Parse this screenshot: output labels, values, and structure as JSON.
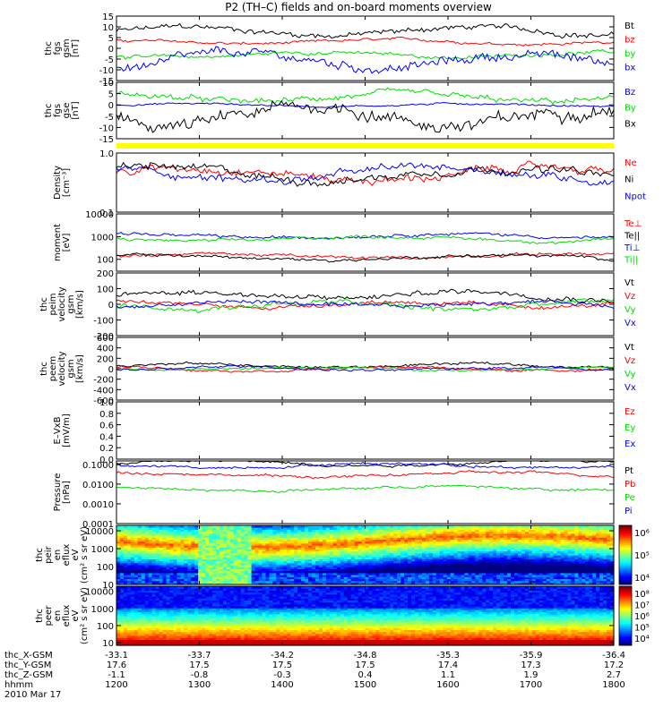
{
  "chart_data": {
    "title": "P2 (TH–C) fields and on-board moments overview",
    "type": "line",
    "x": {
      "label": "hhmm",
      "range": [
        1200,
        1800
      ],
      "ticks": [
        "1200",
        "1300",
        "1400",
        "1500",
        "1600",
        "1700",
        "1800"
      ]
    },
    "date": "2010 Mar 17",
    "ephemeris": [
      {
        "name": "thc_X-GSM",
        "values": [
          "-33.1",
          "-33.7",
          "-34.2",
          "-34.8",
          "-35.3",
          "-35.9",
          "-36.4"
        ]
      },
      {
        "name": "thc_Y-GSM",
        "values": [
          "17.6",
          "17.5",
          "17.5",
          "17.5",
          "17.4",
          "17.3",
          "17.2"
        ]
      },
      {
        "name": "thc_Z-GSM",
        "values": [
          "-1.1",
          "-0.8",
          "-0.3",
          "0.4",
          "1.1",
          "1.9",
          "2.7"
        ]
      },
      {
        "name": "hhmm",
        "values": [
          "1200",
          "1300",
          "1400",
          "1500",
          "1600",
          "1700",
          "1800"
        ]
      }
    ],
    "panels": [
      {
        "id": "fgs",
        "ylabel": [
          "thc",
          "fgs",
          "gsm",
          "[nT]"
        ],
        "scale": "linear",
        "ylim": [
          -15,
          15
        ],
        "yticks": [
          "15",
          "10",
          "5",
          "0",
          "-5",
          "-10",
          "-15"
        ],
        "series": [
          {
            "name": "Bt",
            "color": "#000000",
            "level": 8,
            "amp": 3
          },
          {
            "name": "bz",
            "color": "#ff0000",
            "level": 3,
            "amp": 1.5
          },
          {
            "name": "by",
            "color": "#00dd00",
            "level": -3,
            "amp": 2
          },
          {
            "name": "bx",
            "color": "#0000ff",
            "level": -6,
            "amp": 5
          }
        ]
      },
      {
        "id": "fgs-despun",
        "ylabel": [
          "thc",
          "fgs",
          "gse",
          "[nT]"
        ],
        "scale": "linear",
        "ylim": [
          -15,
          10
        ],
        "yticks": [
          "10",
          "5",
          "0",
          "-5",
          "-10",
          "-15"
        ],
        "series": [
          {
            "name": "Bz",
            "color": "#0000ff",
            "level": 0,
            "amp": 1
          },
          {
            "name": "By",
            "color": "#00dd00",
            "level": 3,
            "amp": 3
          },
          {
            "name": "Bx",
            "color": "#000000",
            "level": -5,
            "amp": 7
          }
        ]
      },
      {
        "id": "flag-bar",
        "bar_color": "#ffff00"
      },
      {
        "id": "density",
        "ylabel": [
          "Density",
          "[cm⁻³]"
        ],
        "scale": "log",
        "ylim": [
          0.1,
          1.0
        ],
        "yticks": [
          "1.0",
          "0.1"
        ],
        "series": [
          {
            "name": "Ne",
            "color": "#ff0000",
            "level": 0.45,
            "amp": 0.1
          },
          {
            "name": "Ni",
            "color": "#000000",
            "level": 0.45,
            "amp": 0.1
          },
          {
            "name": "Npot",
            "color": "#0000ff",
            "level": 0.45,
            "amp": 0.08
          }
        ]
      },
      {
        "id": "temperature",
        "ylabel": [
          "moment",
          "[eV]"
        ],
        "scale": "log",
        "ylim": [
          30,
          10000
        ],
        "yticks": [
          "10000",
          "1000",
          "100"
        ],
        "series": [
          {
            "name": "Te⊥",
            "color": "#ff0000",
            "level": 140,
            "amp": 20
          },
          {
            "name": "Te||",
            "color": "#000000",
            "level": 120,
            "amp": 20
          },
          {
            "name": "Ti⊥",
            "color": "#0000ff",
            "level": 1100,
            "amp": 200
          },
          {
            "name": "Ti||",
            "color": "#00dd00",
            "level": 800,
            "amp": 150
          }
        ]
      },
      {
        "id": "velocity-peim",
        "ylabel": [
          "thc",
          "peim",
          "velocity",
          "gsm",
          "[km/s]"
        ],
        "scale": "linear",
        "ylim": [
          -200,
          200
        ],
        "yticks": [
          "200",
          "100",
          "0",
          "-100",
          "-200"
        ],
        "series": [
          {
            "name": "Vt",
            "color": "#000000",
            "level": 60,
            "amp": 40
          },
          {
            "name": "Vz",
            "color": "#ff0000",
            "level": 0,
            "amp": 30
          },
          {
            "name": "Vy",
            "color": "#00dd00",
            "level": -10,
            "amp": 40
          },
          {
            "name": "Vx",
            "color": "#0000ff",
            "level": 0,
            "amp": 30
          }
        ]
      },
      {
        "id": "velocity-peem",
        "ylabel": [
          "thc",
          "peem",
          "velocity",
          "gsm",
          "[km/s]"
        ],
        "scale": "linear",
        "ylim": [
          -600,
          600
        ],
        "yticks": [
          "600",
          "400",
          "200",
          "0",
          "-200",
          "-400",
          "-600"
        ],
        "series": [
          {
            "name": "Vt",
            "color": "#000000",
            "level": 60,
            "amp": 60
          },
          {
            "name": "Vz",
            "color": "#ff0000",
            "level": 0,
            "amp": 50
          },
          {
            "name": "Vy",
            "color": "#00dd00",
            "level": 0,
            "amp": 40
          },
          {
            "name": "Vx",
            "color": "#0000ff",
            "level": 0,
            "amp": 60
          }
        ]
      },
      {
        "id": "efield",
        "ylabel": [
          "E–VxB",
          "[mV/m]"
        ],
        "scale": "linear",
        "ylim": [
          0,
          1
        ],
        "yticks": [
          "1.0",
          "0.8",
          "0.6",
          "0.4",
          "0.2",
          "0.0"
        ],
        "series": [
          {
            "name": "Ez",
            "color": "#ff0000"
          },
          {
            "name": "Ey",
            "color": "#00dd00"
          },
          {
            "name": "Ex",
            "color": "#0000ff"
          }
        ],
        "empty": true
      },
      {
        "id": "pressure",
        "ylabel": [
          "Pressure",
          "[nPa]"
        ],
        "scale": "log",
        "ylim": [
          0.0001,
          0.15
        ],
        "yticks": [
          "0.1000",
          "0.0100",
          "0.0010",
          "0.0001"
        ],
        "series": [
          {
            "name": "Pt",
            "color": "#000000",
            "level": 0.12,
            "amp": 0.01
          },
          {
            "name": "Pb",
            "color": "#ff0000",
            "level": 0.03,
            "amp": 0.015
          },
          {
            "name": "Pe",
            "color": "#00dd00",
            "level": 0.006,
            "amp": 0.002
          },
          {
            "name": "Pi",
            "color": "#0000ff",
            "level": 0.09,
            "amp": 0.01
          }
        ]
      },
      {
        "id": "ion-spectrogram",
        "type": "heatmap",
        "ylabel": [
          "thc",
          "peir",
          "en",
          "eflux",
          "eV",
          "(cm² s sr eV)"
        ],
        "scale": "log",
        "ylim": [
          10,
          20000
        ],
        "yticks": [
          "10000",
          "1000",
          "100",
          "10"
        ],
        "colorbar": {
          "ticks": [
            "10⁶",
            "10⁵",
            "10⁴"
          ],
          "range": [
            3.5,
            6.2
          ]
        }
      },
      {
        "id": "electron-spectrogram",
        "type": "heatmap",
        "ylabel": [
          "thc",
          "peer",
          "en",
          "eflux",
          "eV",
          "(cm² s sr eV)"
        ],
        "scale": "log",
        "ylim": [
          7,
          20000
        ],
        "yticks": [
          "10000",
          "1000",
          "100",
          "10"
        ],
        "colorbar": {
          "ticks": [
            "10⁸",
            "10⁷",
            "10⁶",
            "10⁵",
            "10⁴"
          ],
          "range": [
            3.5,
            8.2
          ]
        }
      }
    ]
  }
}
